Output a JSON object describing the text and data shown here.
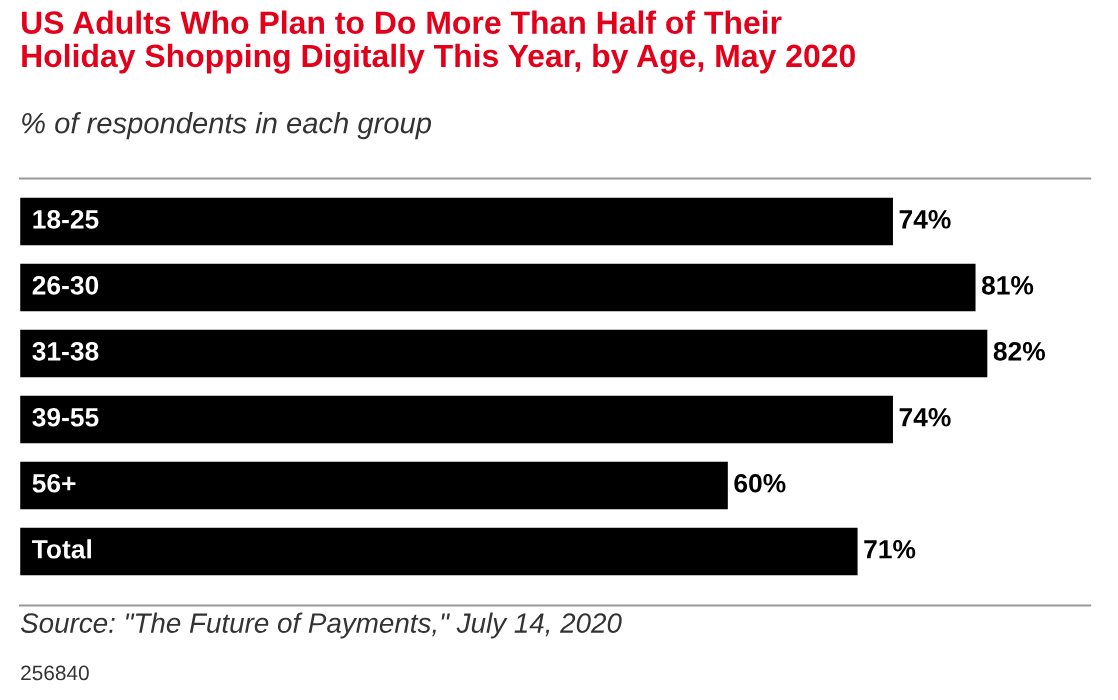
{
  "chart_data": {
    "type": "bar",
    "orientation": "horizontal",
    "title": "US Adults Who Plan to Do More Than Half of Their\nHoliday Shopping Digitally This Year, by Age, May 2020",
    "subtitle": "% of respondents in each group",
    "categories": [
      "18-25",
      "26-30",
      "31-38",
      "39-55",
      "56+",
      "Total"
    ],
    "values": [
      74,
      81,
      82,
      74,
      60,
      71
    ],
    "value_labels": [
      "74%",
      "81%",
      "82%",
      "74%",
      "60%",
      "71%"
    ],
    "color": "#000000",
    "annotations": [
      "Source: \"The Future of Payments,\" July 14, 2020",
      "256840"
    ]
  }
}
